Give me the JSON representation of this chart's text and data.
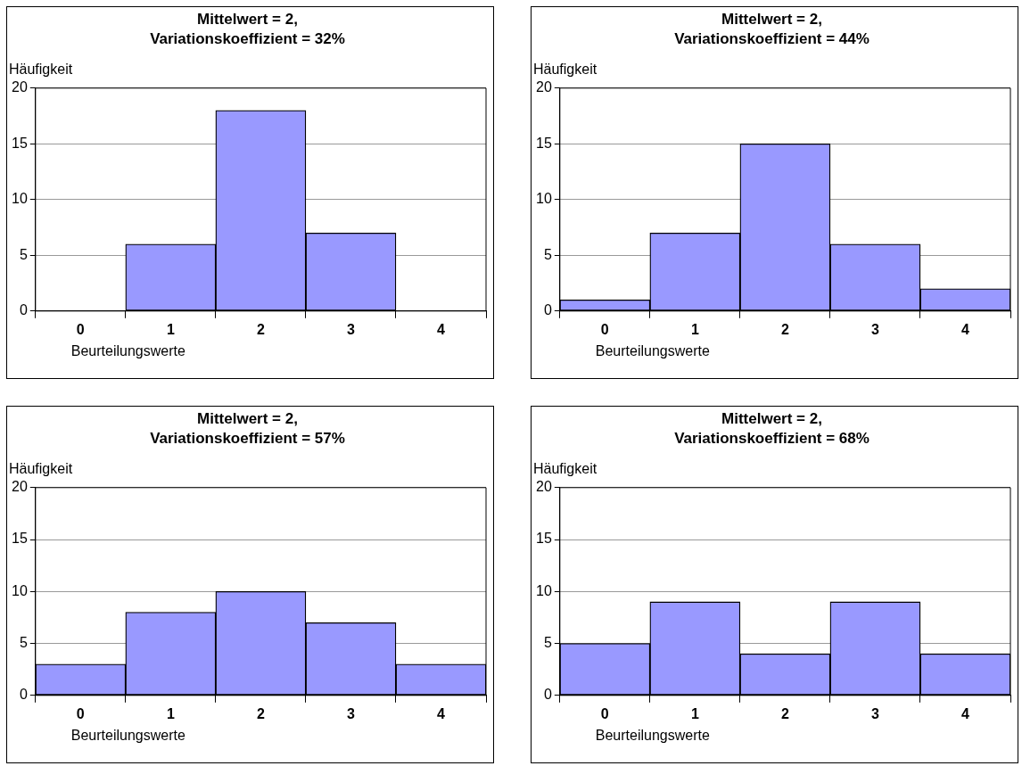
{
  "chart_data": [
    {
      "type": "bar",
      "title": "Mittelwert = 2,",
      "subtitle": "Variationskoeffizient = 32%",
      "xlabel": "Beurteilungswerte",
      "ylabel": "Häufigkeit",
      "categories": [
        "0",
        "1",
        "2",
        "3",
        "4"
      ],
      "values": [
        0,
        6,
        18,
        7,
        0
      ],
      "color": "#9999ff",
      "ylim": [
        0,
        20
      ],
      "yticks": [
        0,
        5,
        10,
        15,
        20
      ],
      "grid": "y",
      "legend": false
    },
    {
      "type": "bar",
      "title": "Mittelwert = 2,",
      "subtitle": "Variationskoeffizient = 44%",
      "xlabel": "Beurteilungswerte",
      "ylabel": "Häufigkeit",
      "categories": [
        "0",
        "1",
        "2",
        "3",
        "4"
      ],
      "values": [
        1,
        7,
        15,
        6,
        2
      ],
      "color": "#9999ff",
      "ylim": [
        0,
        20
      ],
      "yticks": [
        0,
        5,
        10,
        15,
        20
      ],
      "grid": "y",
      "legend": false
    },
    {
      "type": "bar",
      "title": "Mittelwert = 2,",
      "subtitle": "Variationskoeffizient = 57%",
      "xlabel": "Beurteilungswerte",
      "ylabel": "Häufigkeit",
      "categories": [
        "0",
        "1",
        "2",
        "3",
        "4"
      ],
      "values": [
        3,
        8,
        10,
        7,
        3
      ],
      "color": "#9999ff",
      "ylim": [
        0,
        20
      ],
      "yticks": [
        0,
        5,
        10,
        15,
        20
      ],
      "grid": "y",
      "legend": false
    },
    {
      "type": "bar",
      "title": "Mittelwert = 2,",
      "subtitle": "Variationskoeffizient = 68%",
      "xlabel": "Beurteilungswerte",
      "ylabel": "Häufigkeit",
      "categories": [
        "0",
        "1",
        "2",
        "3",
        "4"
      ],
      "values": [
        5,
        9,
        4,
        9,
        4
      ],
      "color": "#9999ff",
      "ylim": [
        0,
        20
      ],
      "yticks": [
        0,
        5,
        10,
        15,
        20
      ],
      "grid": "y",
      "legend": false
    }
  ]
}
